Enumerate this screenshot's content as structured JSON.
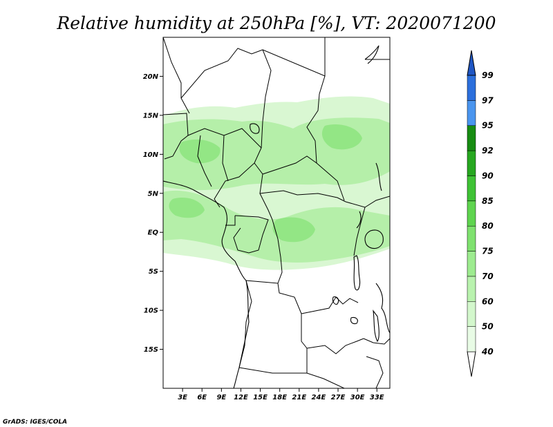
{
  "title": "Relative humidity at 250hPa [%], VT: 2020071200",
  "credit": "GrADS: IGES/COLA",
  "map": {
    "lon_range": [
      0,
      35
    ],
    "lat_range": [
      -20,
      25
    ],
    "lat_ticks": [
      {
        "value": 20,
        "label": "20N"
      },
      {
        "value": 15,
        "label": "15N"
      },
      {
        "value": 10,
        "label": "10N"
      },
      {
        "value": 5,
        "label": "5N"
      },
      {
        "value": 0,
        "label": "EQ"
      },
      {
        "value": -5,
        "label": "5S"
      },
      {
        "value": -10,
        "label": "10S"
      },
      {
        "value": -15,
        "label": "15S"
      }
    ],
    "lon_ticks": [
      {
        "value": 3,
        "label": "3E"
      },
      {
        "value": 6,
        "label": "6E"
      },
      {
        "value": 9,
        "label": "9E"
      },
      {
        "value": 12,
        "label": "12E"
      },
      {
        "value": 15,
        "label": "15E"
      },
      {
        "value": 18,
        "label": "18E"
      },
      {
        "value": 21,
        "label": "21E"
      },
      {
        "value": 24,
        "label": "24E"
      },
      {
        "value": 27,
        "label": "27E"
      },
      {
        "value": 30,
        "label": "30E"
      },
      {
        "value": 33,
        "label": "33E"
      }
    ]
  },
  "colorbar": {
    "levels": [
      {
        "label": "40",
        "color": "#ffffff"
      },
      {
        "label": "50",
        "color": "#e8fbe5"
      },
      {
        "label": "60",
        "color": "#d3f7cc"
      },
      {
        "label": "70",
        "color": "#b9f2ae"
      },
      {
        "label": "75",
        "color": "#9deb8f"
      },
      {
        "label": "80",
        "color": "#7fe16f"
      },
      {
        "label": "85",
        "color": "#5fd44f"
      },
      {
        "label": "90",
        "color": "#3fc235"
      },
      {
        "label": "92",
        "color": "#27a720"
      },
      {
        "label": "95",
        "color": "#178c12"
      },
      {
        "label": "97",
        "color": "#4a95ee"
      },
      {
        "label": "99",
        "color": "#2c6fdc"
      }
    ],
    "bottom_color": "#ffffff",
    "top_color": "#1f56c4"
  },
  "humidity_colors": {
    "light": "#d9f7d2",
    "medium": "#b5efa9",
    "strong": "#93e685"
  }
}
